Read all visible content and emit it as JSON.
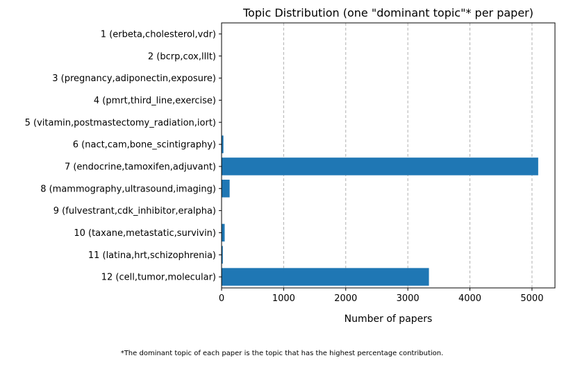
{
  "chart_data": {
    "type": "bar",
    "orientation": "horizontal",
    "title": "Topic Distribution (one \"dominant topic\"* per paper)",
    "xlabel": "Number of papers",
    "ylabel": "",
    "categories": [
      "1 (erbeta,cholesterol,vdr)",
      "2 (bcrp,cox,lllt)",
      "3 (pregnancy,adiponectin,exposure)",
      "4 (pmrt,third_line,exercise)",
      "5 (vitamin,postmastectomy_radiation,iort)",
      "6 (nact,cam,bone_scintigraphy)",
      "7 (endocrine,tamoxifen,adjuvant)",
      "8 (mammography,ultrasound,imaging)",
      "9 (fulvestrant,cdk_inhibitor,eralpha)",
      "10 (taxane,metastatic,survivin)",
      "11 (latina,hrt,schizophrenia)",
      "12 (cell,tumor,molecular)"
    ],
    "values": [
      3,
      2,
      4,
      3,
      3,
      30,
      5100,
      130,
      3,
      50,
      20,
      3340
    ],
    "xlim": [
      0,
      5370
    ],
    "xticks": [
      0,
      1000,
      2000,
      3000,
      4000,
      5000
    ],
    "grid": "x-dashed",
    "bar_color": "#1f77b4",
    "grid_color": "#b0b0b0"
  },
  "footnote": "*The dominant topic of each paper is the topic that has the highest percentage contribution."
}
